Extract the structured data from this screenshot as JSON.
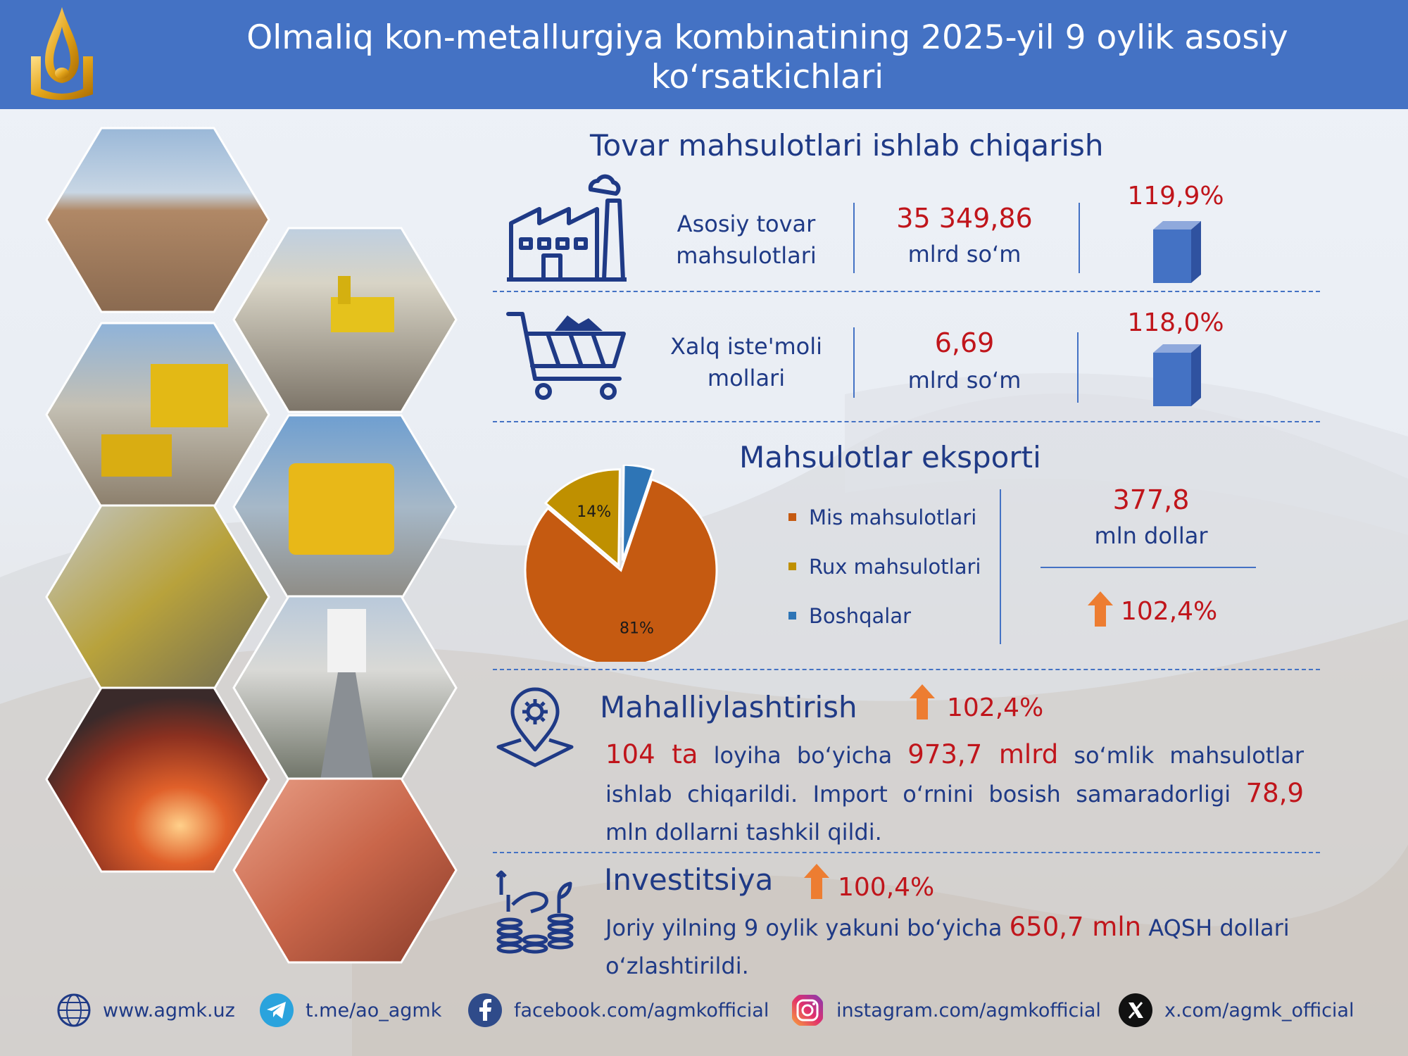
{
  "header": {
    "title_line1": "Olmaliq kon-metallurgiya kombinatining 2025-yil 9 oylik asosiy",
    "title_line2": "ko‘rsatkichlari"
  },
  "production": {
    "heading": "Tovar mahsulotlari ishlab chiqarish",
    "rows": [
      {
        "label_line1": "Asosiy tovar",
        "label_line2": "mahsulotlari",
        "value": "35 349,86",
        "unit": "mlrd so‘m",
        "growth": "119,9%",
        "icon": "factory-icon"
      },
      {
        "label_line1": "Xalq iste'moli",
        "label_line2": "mollari",
        "value": "6,69",
        "unit": "mlrd so‘m",
        "growth": "118,0%",
        "icon": "shopping-cart-icon"
      }
    ]
  },
  "export": {
    "heading": "Mahsulotlar eksporti",
    "value": "377,8",
    "unit": "mln dollar",
    "growth": "102,4%",
    "legend": [
      "Mis mahsulotlari",
      "Rux mahsulotlari",
      "Boshqalar"
    ]
  },
  "chart_data": {
    "type": "pie",
    "categories": [
      "Mis mahsulotlari",
      "Rux mahsulotlari",
      "Boshqalar"
    ],
    "values": [
      81,
      14,
      5
    ],
    "labels": [
      "81%",
      "14%",
      "5%"
    ],
    "colors": [
      "#c55a11",
      "#bf9000",
      "#2e75b6"
    ],
    "legend_position": "right"
  },
  "localization": {
    "heading": "Mahalliylashtirish",
    "growth": "102,4%",
    "p1": "104 ta",
    "p2": " loyiha bo‘yicha ",
    "p3": "973,7 mlrd",
    "p4": " so‘mlik mahsulotlar ishlab chiqarildi. Import o‘rnini bosish samaradorligi ",
    "p5": "78,9",
    "p6": " mln dollarni tashkil qildi.",
    "icon": "location-gear-icon"
  },
  "investment": {
    "heading": "Investitsiya",
    "growth": "100,4%",
    "p1": "Joriy yilning 9 oylik yakuni bo‘yicha ",
    "p2": "650,7 mln",
    "p3": " AQSH dollari o‘zlashtirildi.",
    "icon": "investment-coins-icon"
  },
  "footer": [
    {
      "text": "www.agmk.uz",
      "icon": "globe-icon"
    },
    {
      "text": "t.me/ao_agmk",
      "icon": "telegram-icon"
    },
    {
      "text": "facebook.com/agmkofficial",
      "icon": "facebook-icon"
    },
    {
      "text": "instagram.com/agmkofficial",
      "icon": "instagram-icon"
    },
    {
      "text": "x.com/agmk_official",
      "icon": "x-icon"
    }
  ],
  "colors": {
    "accent": "#4472c4",
    "navy": "#1f3a86",
    "red": "#c0151b",
    "arrow": "#ed7d31"
  }
}
